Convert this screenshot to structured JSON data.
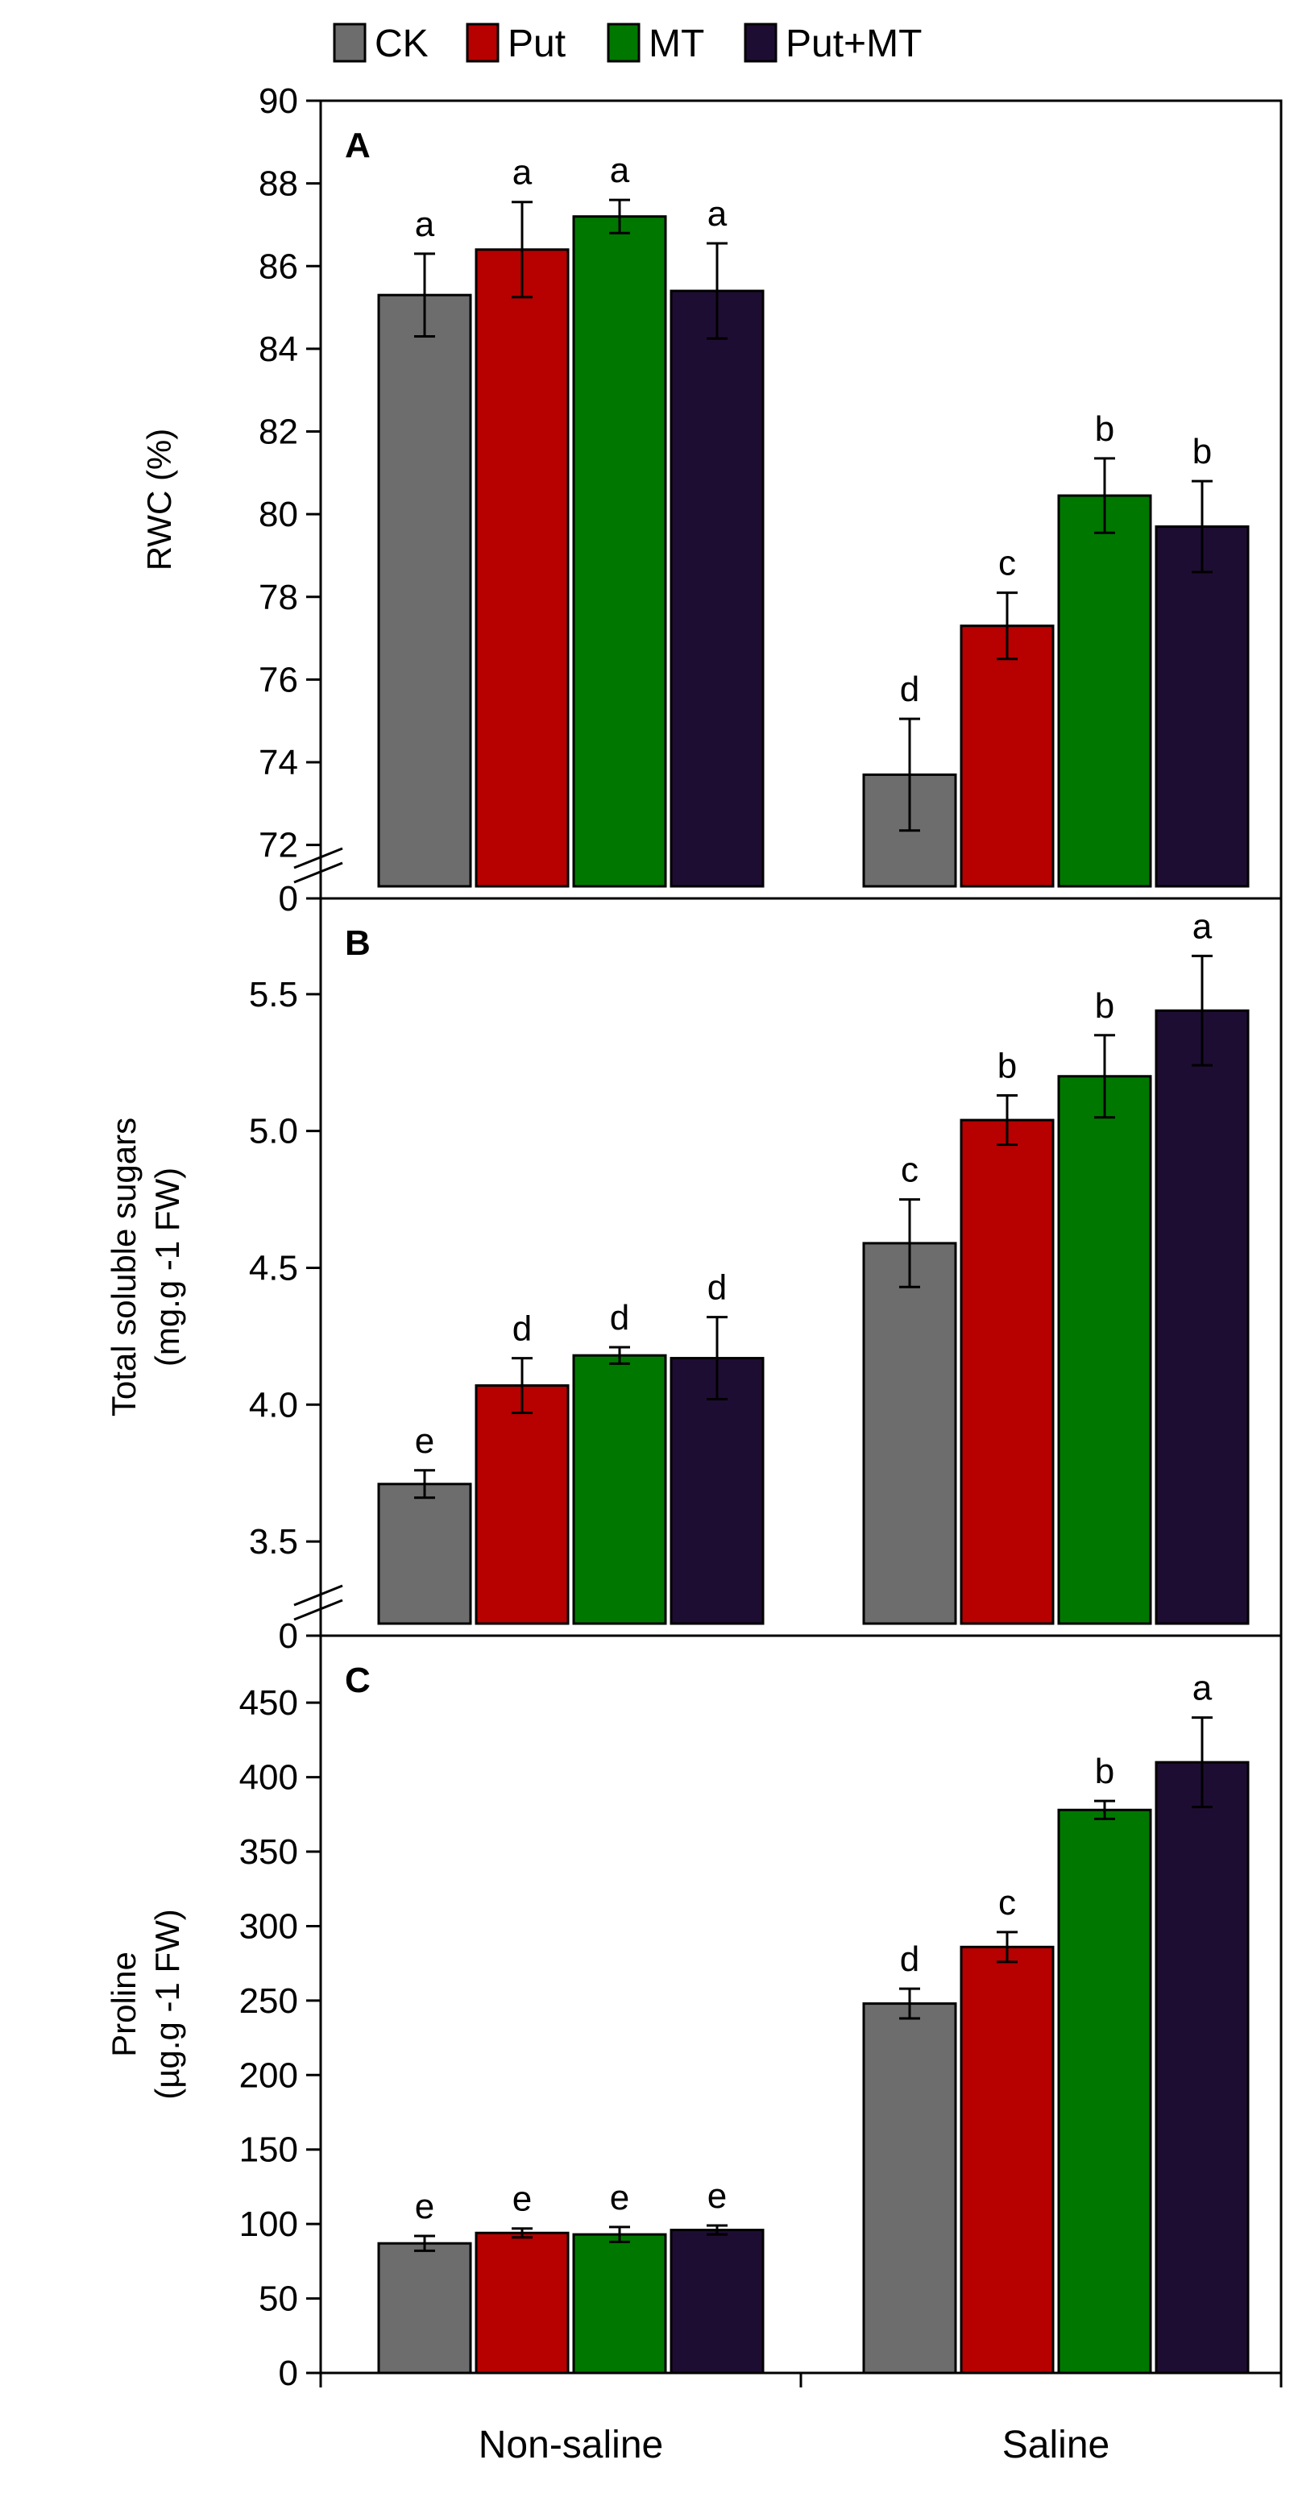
{
  "chart_data": {
    "type": "bar",
    "legend": {
      "placement": "top",
      "entries": [
        {
          "name": "CK",
          "color": "#6d6d6d"
        },
        {
          "name": "Put",
          "color": "#b70000"
        },
        {
          "name": "MT",
          "color": "#007800"
        },
        {
          "name": "Put+MT",
          "color": "#1e0d33"
        }
      ]
    },
    "categories": [
      "Non-saline",
      "Saline"
    ],
    "panels": [
      {
        "letter": "A",
        "ylabel": "RWC (%)",
        "ylabel_line2": "",
        "ylim": [
          71,
          90
        ],
        "broken_axis": true,
        "axis_zero_label": "0",
        "yticks": [
          72,
          74,
          76,
          78,
          80,
          82,
          84,
          86,
          88,
          90
        ],
        "ytick_labels": [
          "72",
          "74",
          "76",
          "78",
          "80",
          "82",
          "84",
          "86",
          "88",
          "90"
        ],
        "series": [
          {
            "name": "CK",
            "values": [
              85.3,
              73.7
            ],
            "errors": [
              1.0,
              1.35
            ],
            "letters": [
              "a",
              "d"
            ]
          },
          {
            "name": "Put",
            "values": [
              86.4,
              77.3
            ],
            "errors": [
              1.15,
              0.8
            ],
            "letters": [
              "a",
              "c"
            ]
          },
          {
            "name": "MT",
            "values": [
              87.2,
              80.45
            ],
            "errors": [
              0.4,
              0.9
            ],
            "letters": [
              "a",
              "b"
            ]
          },
          {
            "name": "Put+MT",
            "values": [
              85.4,
              79.7
            ],
            "errors": [
              1.15,
              1.1
            ],
            "letters": [
              "a",
              "b"
            ]
          }
        ]
      },
      {
        "letter": "B",
        "ylabel": "Total soluble sugars",
        "ylabel_line2": "(mg.g -1 FW)",
        "ylim": [
          3.2,
          5.85
        ],
        "broken_axis": true,
        "axis_zero_label": "0",
        "yticks": [
          3.5,
          4.0,
          4.5,
          5.0,
          5.5
        ],
        "ytick_labels": [
          "3.5",
          "4.0",
          "4.5",
          "5.0",
          "5.5"
        ],
        "series": [
          {
            "name": "CK",
            "values": [
              3.71,
              4.59
            ],
            "errors": [
              0.05,
              0.16
            ],
            "letters": [
              "e",
              "c"
            ]
          },
          {
            "name": "Put",
            "values": [
              4.07,
              5.04
            ],
            "errors": [
              0.1,
              0.09
            ],
            "letters": [
              "d",
              "b"
            ]
          },
          {
            "name": "MT",
            "values": [
              4.18,
              5.2
            ],
            "errors": [
              0.03,
              0.15
            ],
            "letters": [
              "d",
              "b"
            ]
          },
          {
            "name": "Put+MT",
            "values": [
              4.17,
              5.44
            ],
            "errors": [
              0.15,
              0.2
            ],
            "letters": [
              "d",
              "a"
            ]
          }
        ]
      },
      {
        "letter": "C",
        "ylabel": "Proline",
        "ylabel_line2": "(µg.g -1 FW)",
        "ylim": [
          0,
          495
        ],
        "broken_axis": false,
        "axis_zero_label": "",
        "yticks": [
          0,
          50,
          100,
          150,
          200,
          250,
          300,
          350,
          400,
          450
        ],
        "ytick_labels": [
          "0",
          "50",
          "100",
          "150",
          "200",
          "250",
          "300",
          "350",
          "400",
          "450"
        ],
        "series": [
          {
            "name": "CK",
            "values": [
              87,
              248
            ],
            "errors": [
              5,
              10
            ],
            "letters": [
              "e",
              "d"
            ]
          },
          {
            "name": "Put",
            "values": [
              94,
              286
            ],
            "errors": [
              3,
              10
            ],
            "letters": [
              "e",
              "c"
            ]
          },
          {
            "name": "MT",
            "values": [
              93,
              378
            ],
            "errors": [
              5,
              6
            ],
            "letters": [
              "e",
              "b"
            ]
          },
          {
            "name": "Put+MT",
            "values": [
              96,
              410
            ],
            "errors": [
              3,
              30
            ],
            "letters": [
              "e",
              "a"
            ]
          }
        ]
      }
    ]
  }
}
